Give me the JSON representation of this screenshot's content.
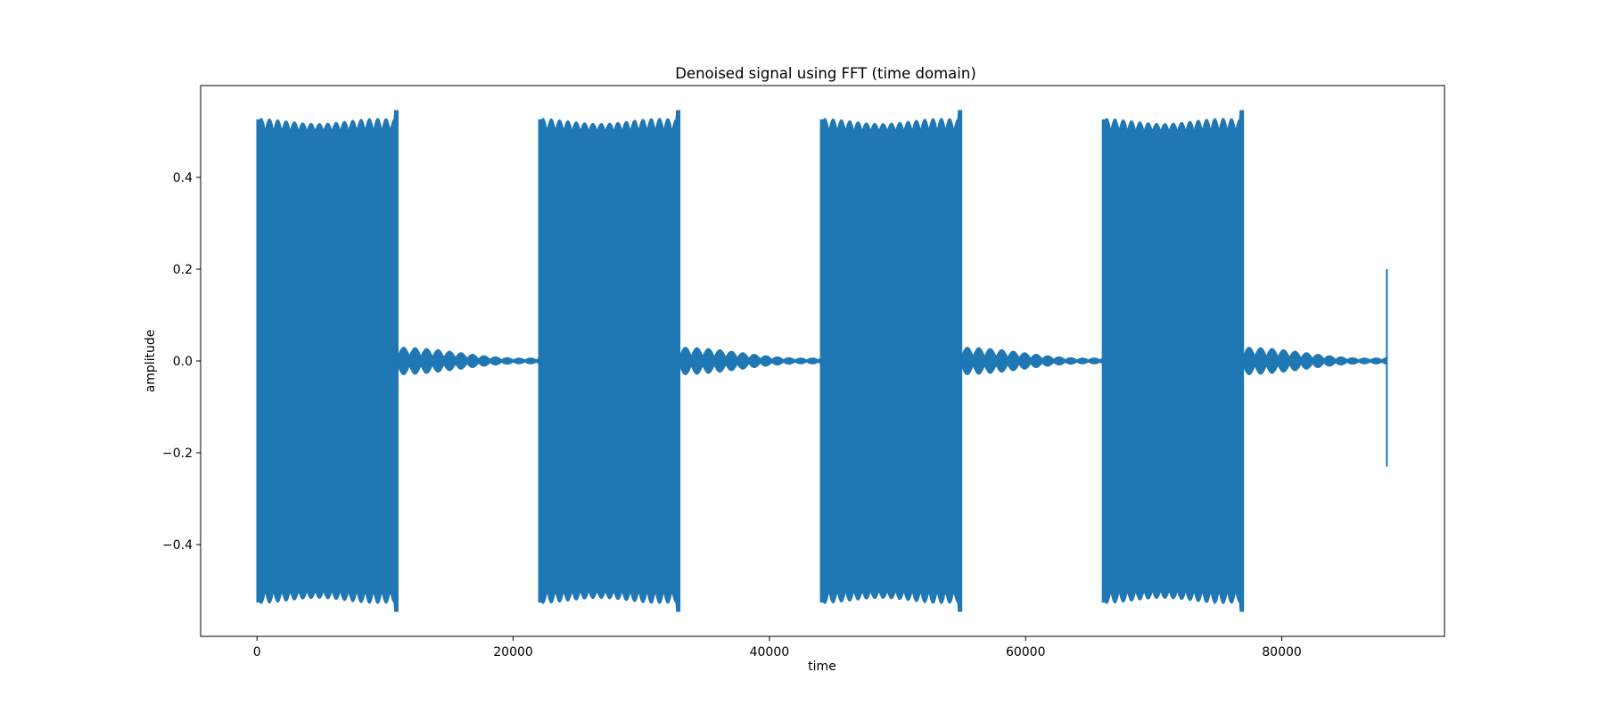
{
  "chart_data": {
    "type": "line",
    "title": "Denoised signal using FFT (time domain)",
    "xlabel": "time",
    "ylabel": "amplitude",
    "xlim": [
      -4400,
      92700
    ],
    "ylim": [
      -0.6,
      0.6
    ],
    "xticks": [
      0,
      20000,
      40000,
      60000,
      80000
    ],
    "xtick_labels": [
      "0",
      "20000",
      "40000",
      "60000",
      "80000"
    ],
    "yticks": [
      -0.4,
      -0.2,
      0.0,
      0.2,
      0.4
    ],
    "ytick_labels": [
      "−0.4",
      "−0.2",
      "0.0",
      "0.2",
      "0.4"
    ],
    "grid": false,
    "legend": "none",
    "series": [
      {
        "color": "#1f77b4",
        "bursts": [
          {
            "start": 0,
            "end": 11000,
            "amplitude": 0.5,
            "peak": 0.545
          },
          {
            "start": 22000,
            "end": 33000,
            "amplitude": 0.5,
            "peak": 0.545
          },
          {
            "start": 44000,
            "end": 55000,
            "amplitude": 0.5,
            "peak": 0.545
          },
          {
            "start": 66000,
            "end": 77000,
            "amplitude": 0.5,
            "peak": 0.545
          }
        ],
        "quiet_amplitude": 0.03,
        "end_spike": {
          "x": 88200,
          "max": 0.2,
          "min": -0.23
        },
        "x_end": 88200
      }
    ]
  }
}
